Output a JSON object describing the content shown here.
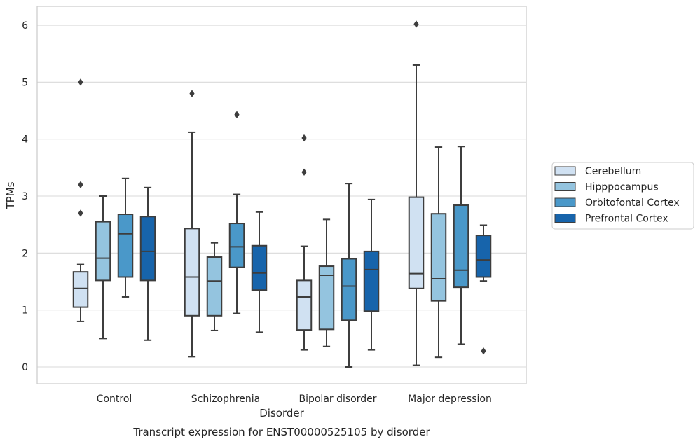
{
  "chart_data": {
    "type": "box",
    "xlabel": "Disorder",
    "ylabel": "TPMs",
    "caption": "Transcript expression for ENST00000525105 by disorder",
    "ylim": [
      -0.3,
      6.35
    ],
    "yticks": [
      0,
      1,
      2,
      3,
      4,
      5,
      6
    ],
    "grid": true,
    "legend_position": "right",
    "categories": [
      "Control",
      "Schizophrenia",
      "Bipolar disorder",
      "Major depression"
    ],
    "series": [
      {
        "name": "Cerebellum",
        "color": "#d0e1f2",
        "boxes": [
          {
            "whisker_low": 0.8,
            "q1": 1.05,
            "median": 1.38,
            "q3": 1.67,
            "whisker_high": 1.8,
            "outliers": [
              2.7,
              3.2,
              5.0
            ]
          },
          {
            "whisker_low": 0.18,
            "q1": 0.9,
            "median": 1.58,
            "q3": 2.43,
            "whisker_high": 4.12,
            "outliers": [
              4.8
            ]
          },
          {
            "whisker_low": 0.3,
            "q1": 0.65,
            "median": 1.23,
            "q3": 1.52,
            "whisker_high": 2.12,
            "outliers": [
              3.42,
              4.02
            ]
          },
          {
            "whisker_low": 0.03,
            "q1": 1.38,
            "median": 1.64,
            "q3": 2.98,
            "whisker_high": 5.3,
            "outliers": [
              6.02
            ]
          }
        ]
      },
      {
        "name": "Hipppocampus",
        "color": "#94c4df",
        "boxes": [
          {
            "whisker_low": 0.5,
            "q1": 1.52,
            "median": 1.91,
            "q3": 2.55,
            "whisker_high": 3.0,
            "outliers": []
          },
          {
            "whisker_low": 0.64,
            "q1": 0.9,
            "median": 1.51,
            "q3": 1.93,
            "whisker_high": 2.18,
            "outliers": []
          },
          {
            "whisker_low": 0.36,
            "q1": 0.66,
            "median": 1.61,
            "q3": 1.77,
            "whisker_high": 2.59,
            "outliers": []
          },
          {
            "whisker_low": 0.17,
            "q1": 1.16,
            "median": 1.55,
            "q3": 2.69,
            "whisker_high": 3.86,
            "outliers": []
          }
        ]
      },
      {
        "name": "Orbitofontal Cortex",
        "color": "#4a98c9",
        "boxes": [
          {
            "whisker_low": 1.23,
            "q1": 1.58,
            "median": 2.34,
            "q3": 2.68,
            "whisker_high": 3.31,
            "outliers": []
          },
          {
            "whisker_low": 0.94,
            "q1": 1.75,
            "median": 2.11,
            "q3": 2.52,
            "whisker_high": 3.03,
            "outliers": [
              4.43
            ]
          },
          {
            "whisker_low": 0.0,
            "q1": 0.82,
            "median": 1.42,
            "q3": 1.9,
            "whisker_high": 3.22,
            "outliers": []
          },
          {
            "whisker_low": 0.4,
            "q1": 1.4,
            "median": 1.7,
            "q3": 2.84,
            "whisker_high": 3.87,
            "outliers": []
          }
        ]
      },
      {
        "name": "Prefrontal Cortex",
        "color": "#1764ab",
        "boxes": [
          {
            "whisker_low": 0.47,
            "q1": 1.52,
            "median": 2.03,
            "q3": 2.64,
            "whisker_high": 3.15,
            "outliers": []
          },
          {
            "whisker_low": 0.61,
            "q1": 1.35,
            "median": 1.65,
            "q3": 2.13,
            "whisker_high": 2.72,
            "outliers": []
          },
          {
            "whisker_low": 0.3,
            "q1": 0.98,
            "median": 1.71,
            "q3": 2.03,
            "whisker_high": 2.94,
            "outliers": []
          },
          {
            "whisker_low": 1.51,
            "q1": 1.58,
            "median": 1.88,
            "q3": 2.31,
            "whisker_high": 2.49,
            "outliers": [
              0.28
            ]
          }
        ]
      }
    ]
  }
}
